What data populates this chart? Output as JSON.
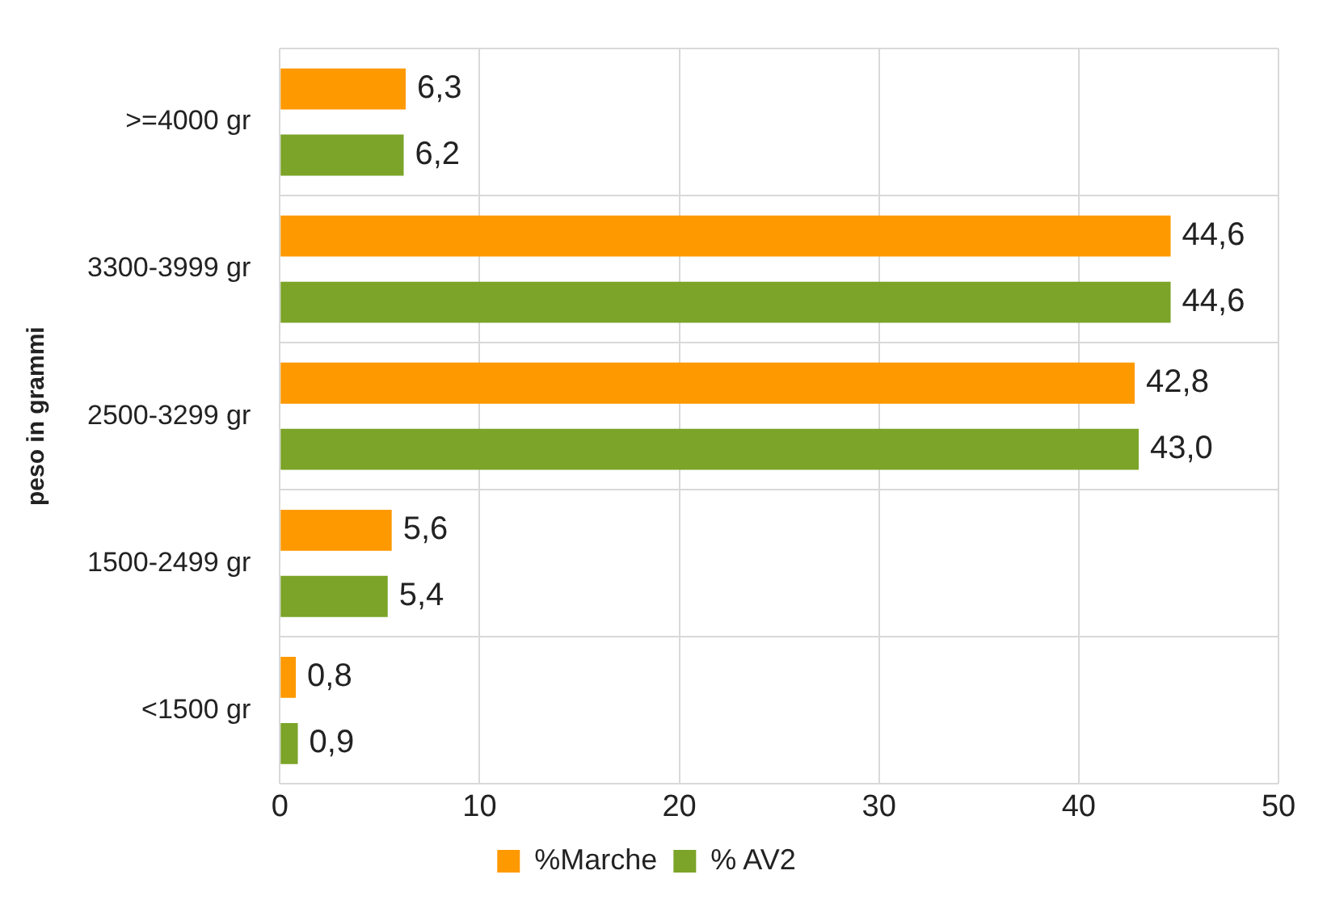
{
  "chart_data": {
    "type": "bar",
    "orientation": "horizontal",
    "ylabel": "peso in grammi",
    "categories": [
      ">=4000 gr",
      "3300-3999 gr",
      "2500-3299 gr",
      "1500-2499 gr",
      "<1500 gr"
    ],
    "series": [
      {
        "name": "%Marche",
        "color": "#ff9900",
        "values": [
          6.3,
          44.6,
          42.8,
          5.6,
          0.8
        ],
        "value_labels": [
          "6,3",
          "44,6",
          "42,8",
          "5,6",
          "0,8"
        ]
      },
      {
        "name": "% AV2",
        "color": "#7ba428",
        "values": [
          6.2,
          44.6,
          43.0,
          5.4,
          0.9
        ],
        "value_labels": [
          "6,2",
          "44,6",
          "43,0",
          "5,4",
          "0,9"
        ]
      }
    ],
    "xlim": [
      0,
      50
    ],
    "xticks": [
      0,
      10,
      20,
      30,
      40,
      50
    ],
    "grid": true,
    "legend": "bottom"
  }
}
